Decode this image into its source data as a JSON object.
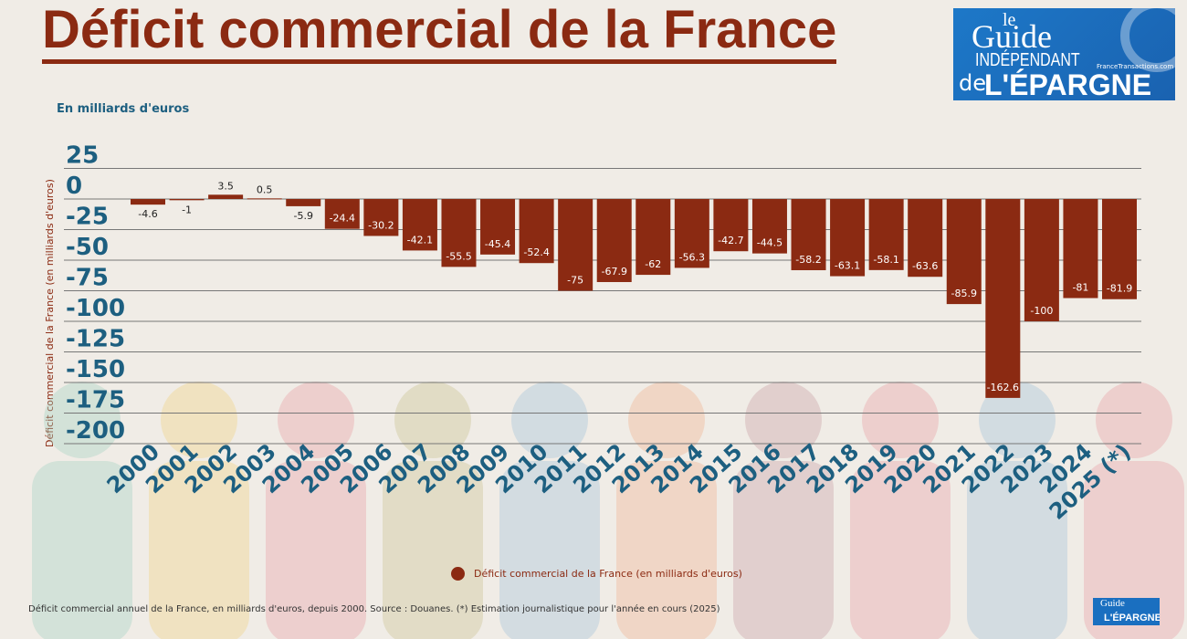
{
  "title": "Déficit commercial de la France",
  "unit_label": "En milliards d'euros",
  "logo": {
    "line1": "le",
    "line2": "Guide",
    "line3": "INDÉPENDANT",
    "line4": "de",
    "line5": "L'ÉPARGNE",
    "site": "FranceTransactions.com"
  },
  "footer": "Déficit commercial annuel de la France, en milliards d'euros, depuis 2000. Source : Douanes. (*) Estimation journalistique pour l'année en cours (2025)",
  "chart_data": {
    "type": "bar",
    "title": "Déficit commercial de la France",
    "ylabel": "Déficit commercial de la France (en milliards d'euros)",
    "xlabel": "",
    "ylim": [
      -200,
      25
    ],
    "yticks": [
      25,
      0,
      -25,
      -50,
      -75,
      -100,
      -125,
      -150,
      -175,
      -200
    ],
    "grid": true,
    "legend_position": "bottom",
    "categories": [
      "2000",
      "2001",
      "2002",
      "2003",
      "2004",
      "2005",
      "2006",
      "2007",
      "2008",
      "2009",
      "2010",
      "2011",
      "2012",
      "2013",
      "2014",
      "2015",
      "2016",
      "2017",
      "2018",
      "2019",
      "2020",
      "2021",
      "2022",
      "2023",
      "2024",
      "2025 (*)"
    ],
    "series": [
      {
        "name": "Déficit commercial de la France (en milliards d'euros)",
        "color": "#8b2a12",
        "values": [
          -4.6,
          -1,
          3.5,
          0.5,
          -5.9,
          -24.4,
          -30.2,
          -42.1,
          -55.5,
          -45.4,
          -52.4,
          -75,
          -67.9,
          -62,
          -56.3,
          -42.7,
          -44.5,
          -58.2,
          -63.1,
          -58.1,
          -63.6,
          -85.9,
          -162.6,
          -100,
          -81,
          -81.9
        ]
      }
    ],
    "colors": {
      "bar": "#8b2a12",
      "axis_text": "#1d5f80",
      "grid": "#777777"
    }
  }
}
